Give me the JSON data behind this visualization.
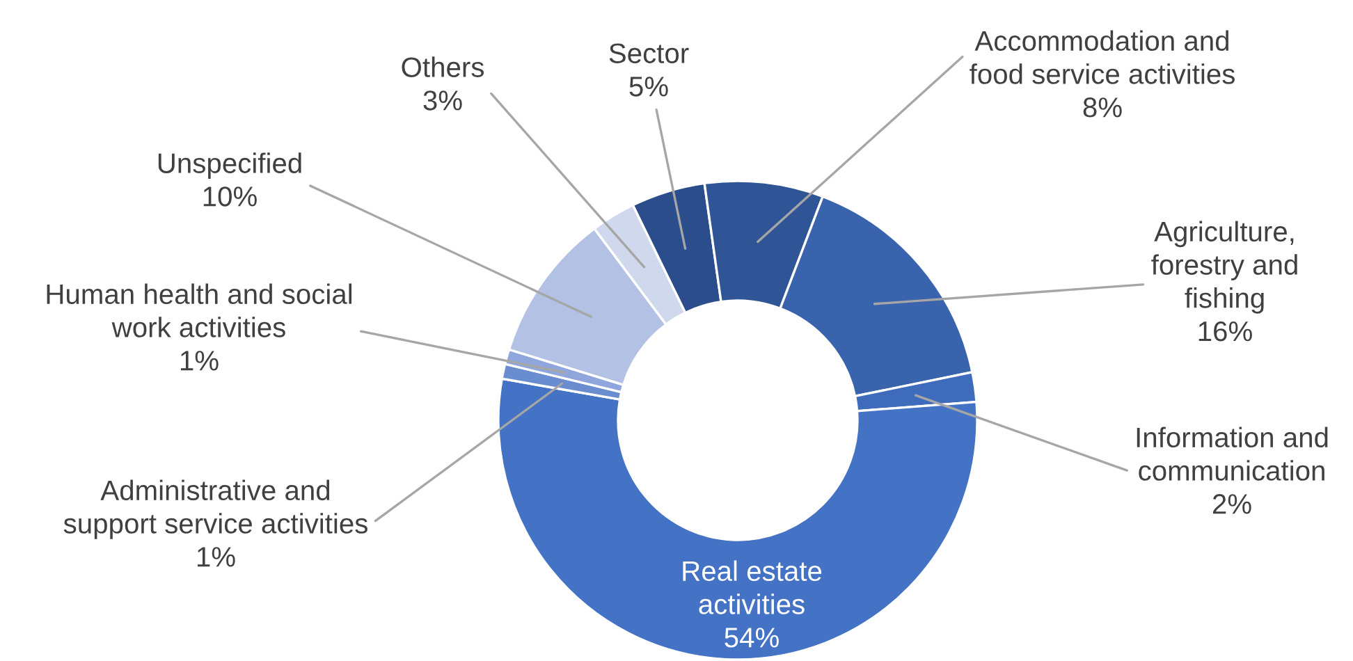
{
  "chart_data": {
    "type": "donut",
    "categories": [
      "Sector",
      "Accommodation and\nfood service activities",
      "Agriculture,\nforestry and\nfishing",
      "Information and\ncommunication",
      "Real estate\nactivities",
      "Administrative and\nsupport service activities",
      "Human health and social\nwork activities",
      "Unspecified",
      "Others"
    ],
    "values": [
      5,
      8,
      16,
      2,
      54,
      1,
      1,
      10,
      3
    ],
    "colors": [
      "#2c4d8c",
      "#2f5597",
      "#3a63ad",
      "#3e6bbb",
      "#4472c4",
      "#6a8dd0",
      "#8ea6dc",
      "#b3c1e5",
      "#d0d8ee"
    ],
    "value_labels": [
      "5%",
      "8%",
      "16%",
      "2%",
      "54%",
      "1%",
      "1%",
      "10%",
      "3%"
    ]
  }
}
